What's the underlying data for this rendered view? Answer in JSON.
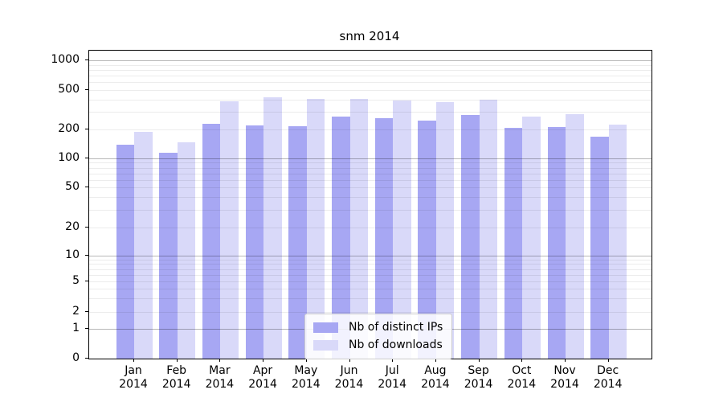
{
  "chart_data": {
    "type": "bar",
    "title": "snm 2014",
    "categories": [
      "Jan",
      "Feb",
      "Mar",
      "Apr",
      "May",
      "Jun",
      "Jul",
      "Aug",
      "Sep",
      "Oct",
      "Nov",
      "Dec"
    ],
    "x_sublabel": "2014",
    "series": [
      {
        "name": "Nb of distinct IPs",
        "color": "#a7a7f3",
        "values": [
          138,
          114,
          228,
          216,
          214,
          270,
          259,
          243,
          279,
          207,
          210,
          168
        ]
      },
      {
        "name": "Nb of downloads",
        "color": "#d9d9f9",
        "values": [
          186,
          145,
          382,
          418,
          408,
          404,
          392,
          379,
          399,
          270,
          284,
          221
        ]
      }
    ],
    "yaxis": {
      "scale": "symlog",
      "ticks": [
        0,
        1,
        2,
        5,
        10,
        20,
        50,
        100,
        200,
        500,
        1000
      ]
    },
    "grid": {
      "major_lines": [
        1,
        10,
        100,
        1000
      ],
      "minor_multipliers": [
        2,
        3,
        4,
        5,
        6,
        7,
        8,
        9
      ]
    },
    "legend": {
      "position": "lower-center-inside"
    }
  }
}
